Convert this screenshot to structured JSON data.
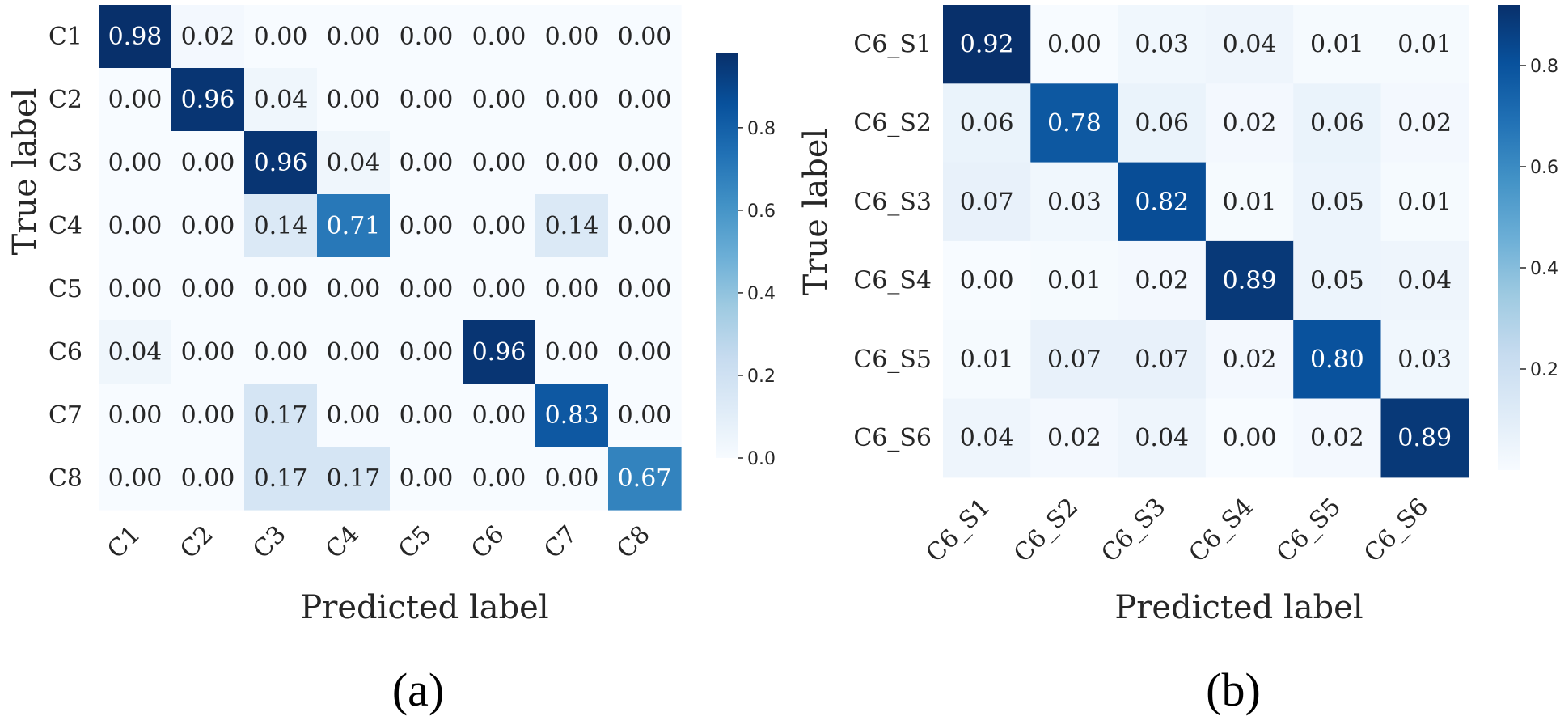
{
  "colors": {
    "cmap": [
      "#f7fbff",
      "#deebf7",
      "#c6dbef",
      "#9ecae1",
      "#6baed6",
      "#4292c6",
      "#2171b5",
      "#08519c",
      "#08306b"
    ],
    "text_dark": "#262626",
    "text_light": "#ffffff"
  },
  "chart_data": [
    {
      "type": "heatmap",
      "panel_label": "(a)",
      "xlabel": "Predicted label",
      "ylabel": "True label",
      "x_categories": [
        "C1",
        "C2",
        "C3",
        "C4",
        "C5",
        "C6",
        "C7",
        "C8"
      ],
      "y_categories": [
        "C1",
        "C2",
        "C3",
        "C4",
        "C5",
        "C6",
        "C7",
        "C8"
      ],
      "values": [
        [
          0.98,
          0.02,
          0.0,
          0.0,
          0.0,
          0.0,
          0.0,
          0.0
        ],
        [
          0.0,
          0.96,
          0.04,
          0.0,
          0.0,
          0.0,
          0.0,
          0.0
        ],
        [
          0.0,
          0.0,
          0.96,
          0.04,
          0.0,
          0.0,
          0.0,
          0.0
        ],
        [
          0.0,
          0.0,
          0.14,
          0.71,
          0.0,
          0.0,
          0.14,
          0.0
        ],
        [
          0.0,
          0.0,
          0.0,
          0.0,
          0.0,
          0.0,
          0.0,
          0.0
        ],
        [
          0.04,
          0.0,
          0.0,
          0.0,
          0.0,
          0.96,
          0.0,
          0.0
        ],
        [
          0.0,
          0.0,
          0.17,
          0.0,
          0.0,
          0.0,
          0.83,
          0.0
        ],
        [
          0.0,
          0.0,
          0.17,
          0.17,
          0.0,
          0.0,
          0.0,
          0.67
        ]
      ],
      "colorbar": {
        "vmin": 0.0,
        "vmax": 0.98,
        "ticks": [
          "0.0",
          "0.2",
          "0.4",
          "0.6",
          "0.8"
        ]
      }
    },
    {
      "type": "heatmap",
      "panel_label": "(b)",
      "xlabel": "Predicted label",
      "ylabel": "True label",
      "x_categories": [
        "C6_S1",
        "C6_S2",
        "C6_S3",
        "C6_S4",
        "C6_S5",
        "C6_S6"
      ],
      "y_categories": [
        "C6_S1",
        "C6_S2",
        "C6_S3",
        "C6_S4",
        "C6_S5",
        "C6_S6"
      ],
      "values": [
        [
          0.92,
          0.0,
          0.03,
          0.04,
          0.01,
          0.01
        ],
        [
          0.06,
          0.78,
          0.06,
          0.02,
          0.06,
          0.02
        ],
        [
          0.07,
          0.03,
          0.82,
          0.01,
          0.05,
          0.01
        ],
        [
          0.0,
          0.01,
          0.02,
          0.89,
          0.05,
          0.04
        ],
        [
          0.01,
          0.07,
          0.07,
          0.02,
          0.8,
          0.03
        ],
        [
          0.04,
          0.02,
          0.04,
          0.0,
          0.02,
          0.89
        ]
      ],
      "colorbar": {
        "vmin": 0.0,
        "vmax": 0.92,
        "ticks": [
          "0.2",
          "0.4",
          "0.6",
          "0.8"
        ]
      }
    }
  ]
}
